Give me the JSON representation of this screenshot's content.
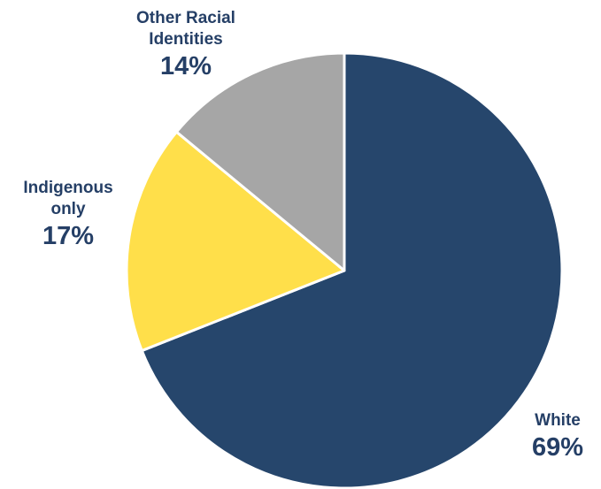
{
  "chart_data": {
    "type": "pie",
    "slices": [
      {
        "label": [
          "White"
        ],
        "value": 69,
        "display": "69%",
        "color": "#26466c"
      },
      {
        "label": [
          "Indigenous",
          "only"
        ],
        "value": 17,
        "display": "17%",
        "color": "#ffdf4a"
      },
      {
        "label": [
          "Other Racial",
          "Identities"
        ],
        "value": 14,
        "display": "14%",
        "color": "#a6a6a6"
      }
    ],
    "start": "12 o'clock",
    "direction": "clockwise",
    "legend": "none",
    "label_color": "#253f66"
  }
}
